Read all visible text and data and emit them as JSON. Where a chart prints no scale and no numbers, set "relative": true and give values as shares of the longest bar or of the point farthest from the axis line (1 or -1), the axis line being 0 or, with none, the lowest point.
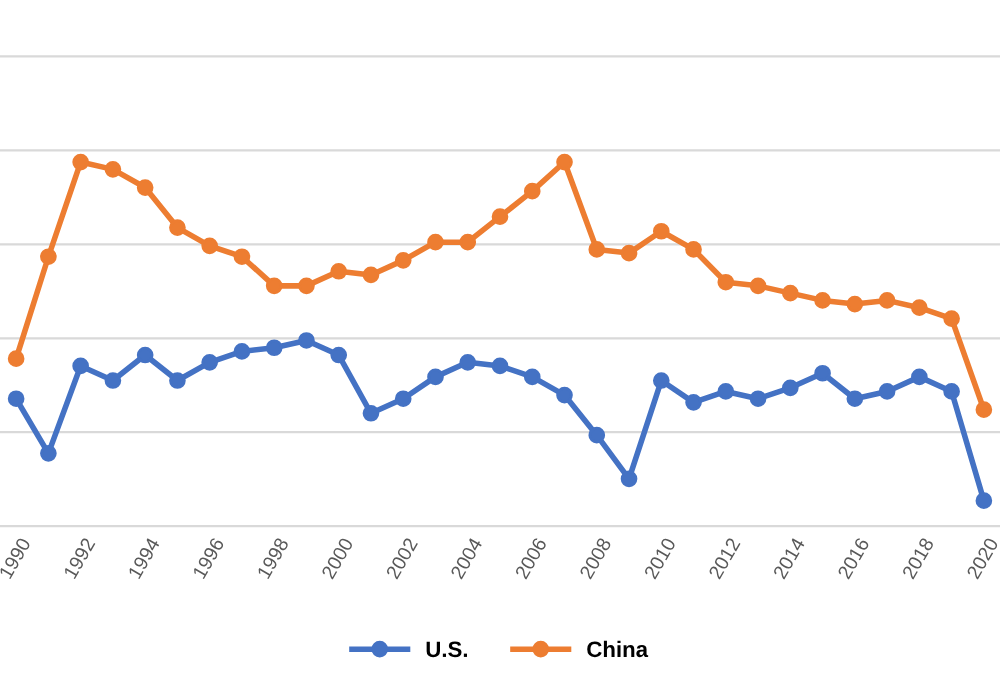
{
  "chart_data": {
    "type": "line",
    "relative": true,
    "grid": "y",
    "legend": "bottom",
    "marker": "circle",
    "line_style": "solid",
    "categories": [
      "1990",
      null,
      "1992",
      null,
      "1994",
      null,
      "1996",
      null,
      "1998",
      null,
      "2000",
      null,
      "2002",
      null,
      "2004",
      null,
      "2006",
      null,
      "2008",
      null,
      "2010",
      null,
      "2012",
      null,
      "2014",
      null,
      "2016",
      null,
      "2018",
      null,
      "2020"
    ],
    "series": [
      {
        "name": "U.S.",
        "color": "#4472c4",
        "values": [
          0.35,
          0.2,
          0.44,
          0.4,
          0.47,
          0.4,
          0.45,
          0.48,
          0.49,
          0.51,
          0.47,
          0.31,
          0.35,
          0.41,
          0.45,
          0.44,
          0.41,
          0.36,
          0.25,
          0.13,
          0.4,
          0.34,
          0.37,
          0.35,
          0.38,
          0.42,
          0.35,
          0.37,
          0.41,
          0.37,
          0.07
        ]
      },
      {
        "name": "China",
        "color": "#ed7d31",
        "values": [
          0.46,
          0.74,
          1.0,
          0.98,
          0.93,
          0.82,
          0.77,
          0.74,
          0.66,
          0.66,
          0.7,
          0.69,
          0.73,
          0.78,
          0.78,
          0.85,
          0.92,
          1.0,
          0.76,
          0.75,
          0.81,
          0.76,
          0.67,
          0.66,
          0.64,
          0.62,
          0.61,
          0.62,
          0.6,
          0.57,
          0.32
        ]
      }
    ]
  }
}
